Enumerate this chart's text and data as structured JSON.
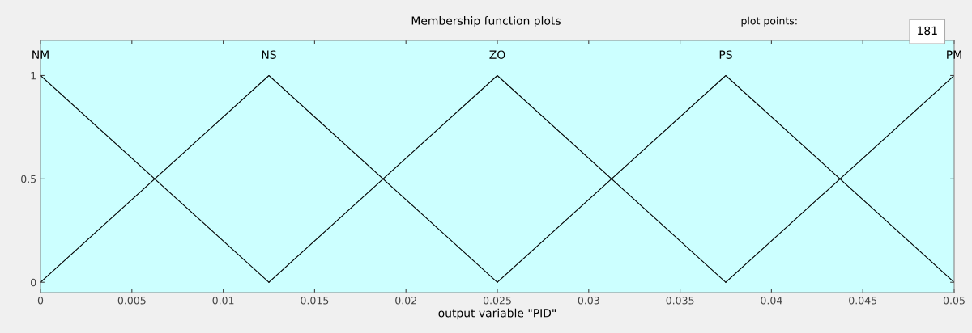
{
  "chart_data": {
    "type": "line",
    "title": "Membership function plots",
    "xlabel": "output variable \"PID\"",
    "series": [
      {
        "name": "NM",
        "color": "#000000",
        "x": [
          0,
          0.0125
        ],
        "values": [
          1,
          0
        ]
      },
      {
        "name": "NS",
        "color": "#000000",
        "x": [
          0,
          0.0125,
          0.025
        ],
        "values": [
          0,
          1,
          0
        ]
      },
      {
        "name": "ZO",
        "color": "#000000",
        "x": [
          0.0125,
          0.025,
          0.0375
        ],
        "values": [
          0,
          1,
          0
        ]
      },
      {
        "name": "PS",
        "color": "#000000",
        "x": [
          0.025,
          0.0375,
          0.05
        ],
        "values": [
          0,
          1,
          0
        ]
      },
      {
        "name": "PM",
        "color": "#000000",
        "x": [
          0.0375,
          0.05
        ],
        "values": [
          0,
          1
        ]
      }
    ],
    "xlim": [
      0,
      0.05
    ],
    "xticks": [
      0,
      0.005,
      0.01,
      0.015,
      0.02,
      0.025,
      0.03,
      0.035,
      0.04,
      0.045,
      0.05
    ],
    "ylim": [
      -0.05,
      1.17
    ],
    "yticks": [
      0,
      0.5,
      1
    ],
    "annotations": [
      "plot points:",
      "181"
    ],
    "grid": false,
    "legend": false,
    "marker": "none",
    "line_style": "solid"
  }
}
